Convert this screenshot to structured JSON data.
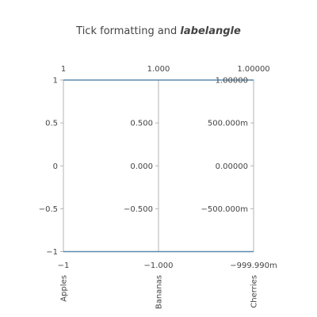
{
  "chart_data": {
    "type": "parcoords",
    "title": {
      "plain": "Tick formatting and ",
      "emphasis": "labelangle"
    },
    "dimensions": [
      {
        "label": "Apples",
        "range": [
          -1,
          1
        ],
        "top_label": "1",
        "bottom_label": "−1",
        "ticks": [
          {
            "value": 1,
            "label": "1"
          },
          {
            "value": 0.5,
            "label": "0.5"
          },
          {
            "value": 0,
            "label": "0"
          },
          {
            "value": -0.5,
            "label": "−0.5"
          },
          {
            "value": -1,
            "label": "−1"
          }
        ]
      },
      {
        "label": "Bananas",
        "range": [
          -1,
          1
        ],
        "top_label": "1.000",
        "bottom_label": "−1.000",
        "ticks": [
          {
            "value": 0.5,
            "label": "0.500"
          },
          {
            "value": 0,
            "label": "0.000"
          },
          {
            "value": -0.5,
            "label": "−0.500"
          }
        ]
      },
      {
        "label": "Cherries",
        "range": [
          -0.99999,
          1
        ],
        "top_label": "1.00000",
        "bottom_label": "−999.990m",
        "ticks": [
          {
            "value": 1,
            "label": "1.00000"
          },
          {
            "value": 0.5,
            "label": "500.000m"
          },
          {
            "value": 0,
            "label": "0.00000"
          },
          {
            "value": -0.5,
            "label": "−500.000m"
          }
        ]
      }
    ],
    "lines": [
      {
        "values": [
          1,
          1,
          1
        ]
      },
      {
        "values": [
          -1,
          -1,
          -0.99999
        ]
      }
    ],
    "line_color": "#4a7fa6",
    "axis_color": "#b3b3b3",
    "text_color": "#444444"
  }
}
